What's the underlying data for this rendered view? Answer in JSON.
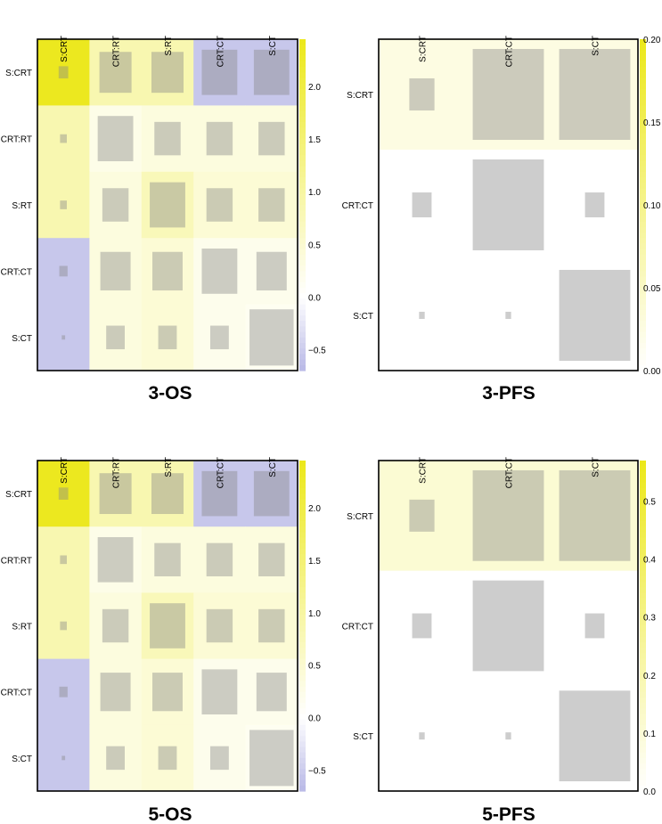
{
  "chart_data": [
    {
      "type": "heatmap",
      "title": "3-OS",
      "labels": [
        "S:CRT",
        "CRT:RT",
        "S:RT",
        "CRT:CT",
        "S:CT"
      ],
      "colorbar": {
        "ticks": [
          "−0.5",
          "0.0",
          "0.5",
          "1.0",
          "1.5",
          "2.0"
        ],
        "tick_values": [
          -0.5,
          0.0,
          0.5,
          1.0,
          1.5,
          2.0
        ],
        "range": [
          -0.7,
          2.45
        ]
      },
      "color_values": [
        [
          2.4,
          0.85,
          0.85,
          -0.55,
          -0.55
        ],
        [
          0.85,
          0.25,
          0.35,
          0.35,
          0.35
        ],
        [
          0.85,
          0.35,
          0.75,
          0.45,
          0.45
        ],
        [
          -0.55,
          0.35,
          0.45,
          0.2,
          0.2
        ],
        [
          -0.55,
          0.35,
          0.45,
          0.2,
          0.15
        ]
      ],
      "size_values": [
        [
          0.04,
          0.45,
          0.45,
          0.55,
          0.55
        ],
        [
          0.02,
          0.55,
          0.3,
          0.3,
          0.3
        ],
        [
          0.02,
          0.3,
          0.55,
          0.3,
          0.3
        ],
        [
          0.03,
          0.4,
          0.4,
          0.55,
          0.4
        ],
        [
          0.005,
          0.15,
          0.15,
          0.15,
          0.85
        ]
      ]
    },
    {
      "type": "heatmap",
      "title": "3-PFS",
      "labels": [
        "S:CRT",
        "CRT:CT",
        "S:CT"
      ],
      "colorbar": {
        "ticks": [
          "0.00",
          "0.05",
          "0.10",
          "0.15",
          "0.20"
        ],
        "tick_values": [
          0.0,
          0.05,
          0.1,
          0.15,
          0.2
        ],
        "range": [
          0.0,
          0.2
        ]
      },
      "color_values": [
        [
          0.025,
          0.025,
          0.025
        ],
        [
          0.0,
          0.0,
          0.0
        ],
        [
          0.0,
          0.0,
          0.0
        ]
      ],
      "size_values": [
        [
          0.1,
          0.8,
          0.8
        ],
        [
          0.06,
          0.8,
          0.06
        ],
        [
          0.005,
          0.005,
          0.8
        ]
      ]
    },
    {
      "type": "heatmap",
      "title": "5-OS",
      "labels": [
        "S:CRT",
        "CRT:RT",
        "S:RT",
        "CRT:CT",
        "S:CT"
      ],
      "colorbar": {
        "ticks": [
          "−0.5",
          "0.0",
          "0.5",
          "1.0",
          "1.5",
          "2.0"
        ],
        "tick_values": [
          -0.5,
          0.0,
          0.5,
          1.0,
          1.5,
          2.0
        ],
        "range": [
          -0.7,
          2.45
        ]
      },
      "color_values": [
        [
          2.4,
          0.85,
          0.85,
          -0.55,
          -0.55
        ],
        [
          0.85,
          0.25,
          0.35,
          0.35,
          0.35
        ],
        [
          0.85,
          0.35,
          0.75,
          0.45,
          0.45
        ],
        [
          -0.55,
          0.35,
          0.45,
          0.2,
          0.2
        ],
        [
          -0.55,
          0.35,
          0.45,
          0.2,
          0.15
        ]
      ],
      "size_values": [
        [
          0.04,
          0.45,
          0.45,
          0.55,
          0.55
        ],
        [
          0.02,
          0.55,
          0.3,
          0.3,
          0.3
        ],
        [
          0.02,
          0.3,
          0.55,
          0.3,
          0.3
        ],
        [
          0.03,
          0.4,
          0.4,
          0.55,
          0.4
        ],
        [
          0.005,
          0.15,
          0.15,
          0.15,
          0.85
        ]
      ]
    },
    {
      "type": "heatmap",
      "title": "5-PFS",
      "labels": [
        "S:CRT",
        "CRT:CT",
        "S:CT"
      ],
      "colorbar": {
        "ticks": [
          "0.0",
          "0.1",
          "0.2",
          "0.3",
          "0.4",
          "0.5"
        ],
        "tick_values": [
          0.0,
          0.1,
          0.2,
          0.3,
          0.4,
          0.5
        ],
        "range": [
          0.0,
          0.57
        ]
      },
      "color_values": [
        [
          0.11,
          0.11,
          0.11
        ],
        [
          0.0,
          0.0,
          0.0
        ],
        [
          0.0,
          0.0,
          0.0
        ]
      ],
      "size_values": [
        [
          0.1,
          0.8,
          0.8
        ],
        [
          0.06,
          0.8,
          0.06
        ],
        [
          0.005,
          0.005,
          0.8
        ]
      ]
    }
  ],
  "colors": {
    "high": "#ece81a",
    "zero": "#ffffff",
    "low": "#b8b8e6",
    "square": "#888888",
    "border": "#000000"
  }
}
